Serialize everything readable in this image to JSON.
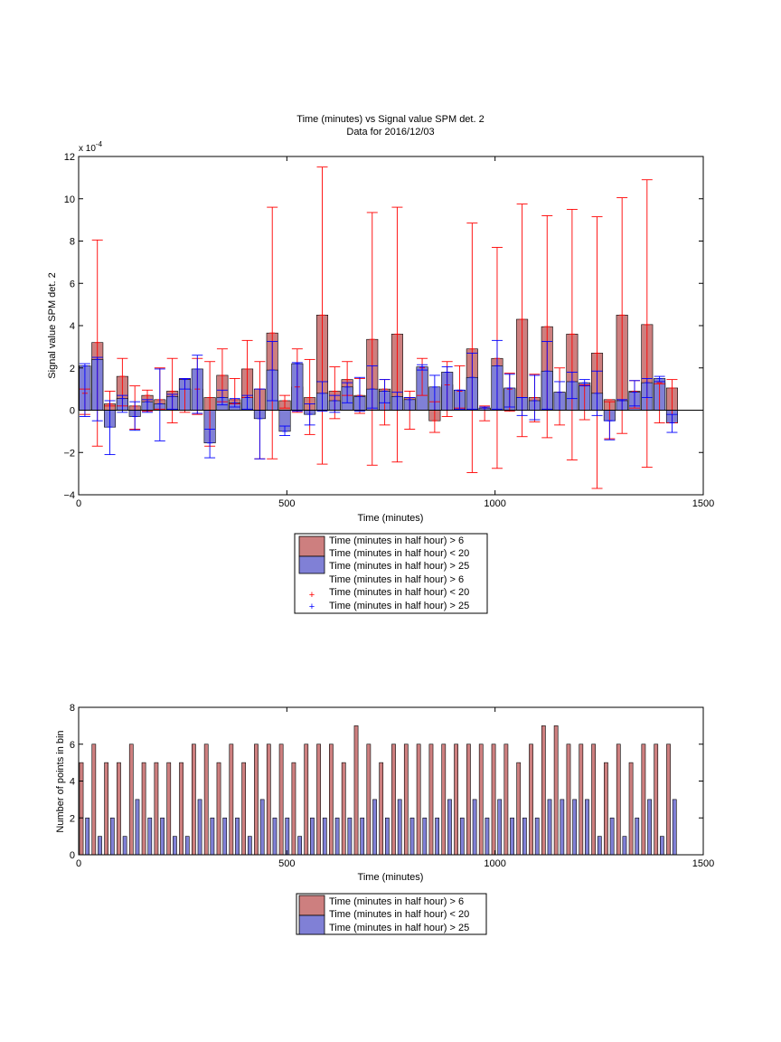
{
  "colors": {
    "red_bar": "#cd7f7f",
    "blue_bar": "#8080d6",
    "red_err": "#ff0000",
    "blue_err": "#0000ff",
    "axis": "#000000"
  },
  "chart_data": [
    {
      "type": "bar",
      "title": "Time (minutes) vs Signal value SPM det. 2",
      "subtitle": "Data for 2016/12/03",
      "xlabel": "Time (minutes)",
      "ylabel": "Signal value SPM det. 2",
      "exponent_label": "x 10",
      "exponent_power": "-4",
      "xlim": [
        0,
        1500
      ],
      "ylim": [
        -4,
        12
      ],
      "xticks": [
        0,
        500,
        1000,
        1500
      ],
      "yticks": [
        -4,
        -2,
        0,
        2,
        4,
        6,
        8,
        10,
        12
      ],
      "xtick_labels": [
        "0",
        "500",
        "1000",
        "1500"
      ],
      "ytick_labels": [
        "−4",
        "−2",
        "0",
        "2",
        "4",
        "6",
        "8",
        "10",
        "12"
      ],
      "legend": {
        "placement": "below",
        "entries": [
          "Time (minutes in half hour) > 6",
          "Time (minutes in half hour) < 20",
          "Time (minutes in half hour) > 25",
          "Time (minutes in half hour) > 6",
          "Time (minutes in half hour) < 20",
          "Time (minutes in half hour) > 25"
        ]
      },
      "x": [
        15,
        45,
        75,
        105,
        135,
        165,
        195,
        225,
        255,
        285,
        315,
        345,
        375,
        405,
        435,
        465,
        495,
        525,
        555,
        585,
        615,
        645,
        675,
        705,
        735,
        765,
        795,
        825,
        855,
        885,
        915,
        945,
        975,
        1005,
        1035,
        1065,
        1095,
        1125,
        1155,
        1185,
        1215,
        1245,
        1275,
        1305,
        1335,
        1365,
        1395,
        1425
      ],
      "series": [
        {
          "values": [
            0.8,
            3.2,
            0.3,
            1.6,
            0.2,
            0.7,
            0.5,
            0.9,
            1.5,
            1.0,
            0.6,
            1.65,
            0.5,
            1.95,
            1.0,
            3.65,
            0.45,
            1.1,
            0.6,
            4.5,
            0.9,
            1.45,
            0.7,
            3.35,
            1.0,
            3.6,
            0.6,
            2.0,
            -0.5,
            1.2,
            0.9,
            2.9,
            0.1,
            2.45,
            1.0,
            4.3,
            0.6,
            3.95,
            0.85,
            3.6,
            1.15,
            2.7,
            0.5,
            4.5,
            0.9,
            4.05,
            1.3,
            1.05
          ],
          "err_low": [
            -0.2,
            -1.7,
            0.2,
            0.2,
            -0.9,
            -0.05,
            0.05,
            -0.6,
            -0.1,
            -0.2,
            -1.7,
            0.4,
            0.3,
            0.6,
            -2.3,
            -2.3,
            0.1,
            -0.1,
            -1.15,
            -2.55,
            -0.4,
            0.7,
            -0.15,
            -2.6,
            -0.7,
            -2.45,
            -0.9,
            0.7,
            -1.05,
            -0.3,
            0.1,
            -2.95,
            -0.5,
            -2.75,
            -0.05,
            -1.25,
            -0.55,
            -1.3,
            -0.7,
            -2.35,
            -0.45,
            -3.7,
            -1.35,
            -1.1,
            0.1,
            -2.7,
            -0.6,
            -0.6
          ],
          "err_high": [
            1.0,
            8.05,
            0.9,
            2.45,
            1.15,
            0.95,
            2.0,
            2.45,
            1.5,
            2.45,
            2.3,
            2.9,
            1.5,
            3.3,
            2.3,
            9.6,
            0.7,
            2.9,
            2.4,
            11.5,
            2.05,
            2.3,
            1.5,
            9.35,
            1.45,
            9.6,
            0.9,
            2.45,
            0.4,
            2.3,
            2.1,
            8.85,
            0.2,
            7.7,
            1.75,
            9.75,
            1.7,
            9.2,
            2.0,
            9.5,
            1.2,
            9.15,
            0.4,
            10.05,
            1.4,
            10.9,
            1.25,
            1.45
          ]
        },
        {
          "values": [
            2.1,
            2.4,
            -0.8,
            0.55,
            -0.3,
            0.4,
            0.3,
            0.65,
            1.45,
            1.95,
            -1.55,
            0.6,
            0.35,
            0.6,
            -0.4,
            1.9,
            -1.0,
            2.2,
            -0.2,
            0.8,
            0.45,
            1.1,
            0.65,
            1.0,
            0.9,
            0.65,
            0.5,
            2.05,
            1.1,
            1.8,
            0.95,
            1.55,
            0.1,
            2.1,
            1.05,
            0.6,
            0.45,
            1.85,
            0.85,
            1.35,
            1.3,
            0.8,
            -0.5,
            0.45,
            0.85,
            1.3,
            1.5,
            -0.6
          ],
          "err_low": [
            -0.3,
            -0.5,
            -2.1,
            -0.1,
            -0.95,
            -0.1,
            -1.45,
            0.05,
            1.0,
            -0.15,
            -2.25,
            0.25,
            0.15,
            0.05,
            -2.3,
            0.45,
            -1.2,
            -0.05,
            -0.7,
            -0.05,
            -0.1,
            0.35,
            -0.05,
            0.1,
            0.35,
            0.0,
            0.0,
            1.9,
            0.0,
            0.0,
            0.05,
            0.05,
            0.0,
            0.05,
            0.15,
            -0.25,
            -0.45,
            0.05,
            0.0,
            0.55,
            1.15,
            -0.25,
            -1.4,
            0.0,
            0.2,
            0.6,
            1.35,
            -1.05
          ],
          "err_high": [
            2.2,
            2.5,
            0.45,
            0.7,
            0.4,
            0.5,
            1.95,
            0.75,
            1.5,
            2.6,
            -0.9,
            0.95,
            0.55,
            0.7,
            1.0,
            3.25,
            -0.75,
            2.25,
            0.3,
            1.35,
            0.7,
            1.3,
            1.55,
            2.1,
            1.45,
            0.85,
            0.6,
            2.15,
            1.65,
            2.05,
            0.95,
            2.7,
            0.15,
            3.3,
            1.7,
            0.6,
            1.65,
            3.25,
            1.35,
            1.8,
            1.45,
            1.85,
            -0.5,
            0.5,
            1.4,
            1.5,
            1.6,
            -0.2
          ]
        }
      ]
    },
    {
      "type": "bar",
      "xlabel": "Time (minutes)",
      "ylabel": "Number of points in bin",
      "xlim": [
        0,
        1500
      ],
      "ylim": [
        0,
        8
      ],
      "xticks": [
        0,
        500,
        1000,
        1500
      ],
      "yticks": [
        0,
        2,
        4,
        6,
        8
      ],
      "xtick_labels": [
        "0",
        "500",
        "1000",
        "1500"
      ],
      "ytick_labels": [
        "0",
        "2",
        "4",
        "6",
        "8"
      ],
      "legend": {
        "placement": "below",
        "entries": [
          "Time (minutes in half hour) > 6",
          "Time (minutes in half hour) < 20",
          "Time (minutes in half hour) > 25"
        ]
      },
      "x": [
        15,
        45,
        75,
        105,
        135,
        165,
        195,
        225,
        255,
        285,
        315,
        345,
        375,
        405,
        435,
        465,
        495,
        525,
        555,
        585,
        615,
        645,
        675,
        705,
        735,
        765,
        795,
        825,
        855,
        885,
        915,
        945,
        975,
        1005,
        1035,
        1065,
        1095,
        1125,
        1155,
        1185,
        1215,
        1245,
        1275,
        1305,
        1335,
        1365,
        1395,
        1425
      ],
      "series": [
        {
          "values": [
            5,
            6,
            5,
            5,
            6,
            5,
            5,
            5,
            5,
            6,
            6,
            5,
            6,
            5,
            6,
            6,
            6,
            5,
            6,
            6,
            6,
            5,
            7,
            6,
            5,
            6,
            6,
            6,
            6,
            6,
            6,
            6,
            6,
            6,
            6,
            5,
            6,
            7,
            7,
            6,
            6,
            6,
            5,
            6,
            5,
            6,
            6,
            6
          ]
        },
        {
          "values": [
            2,
            1,
            2,
            1,
            3,
            2,
            2,
            1,
            1,
            3,
            2,
            2,
            2,
            1,
            3,
            2,
            2,
            1,
            2,
            2,
            2,
            2,
            2,
            3,
            2,
            3,
            2,
            2,
            2,
            3,
            2,
            3,
            2,
            3,
            2,
            2,
            2,
            3,
            3,
            3,
            3,
            1,
            2,
            1,
            2,
            3,
            1,
            3
          ]
        }
      ]
    }
  ]
}
